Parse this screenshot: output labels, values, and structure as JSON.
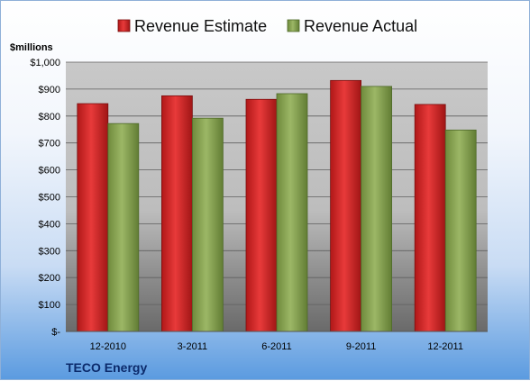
{
  "chart_data": {
    "type": "bar",
    "company": "TECO Energy",
    "units_label": "$millions",
    "categories": [
      "12-2010",
      "3-2011",
      "6-2011",
      "9-2011",
      "12-2011"
    ],
    "series": [
      {
        "name": "Revenue Estimate",
        "values": [
          846,
          875,
          862,
          932,
          843
        ],
        "color": "#d42a2a"
      },
      {
        "name": "Revenue Actual",
        "values": [
          772,
          792,
          883,
          910,
          748
        ],
        "color": "#8aa556"
      }
    ],
    "y_ticks": [
      "$-",
      "$100",
      "$200",
      "$300",
      "$400",
      "$500",
      "$600",
      "$700",
      "$800",
      "$900",
      "$1,000"
    ],
    "ylim": [
      0,
      1000
    ],
    "grid": true,
    "legend_position": "top"
  }
}
